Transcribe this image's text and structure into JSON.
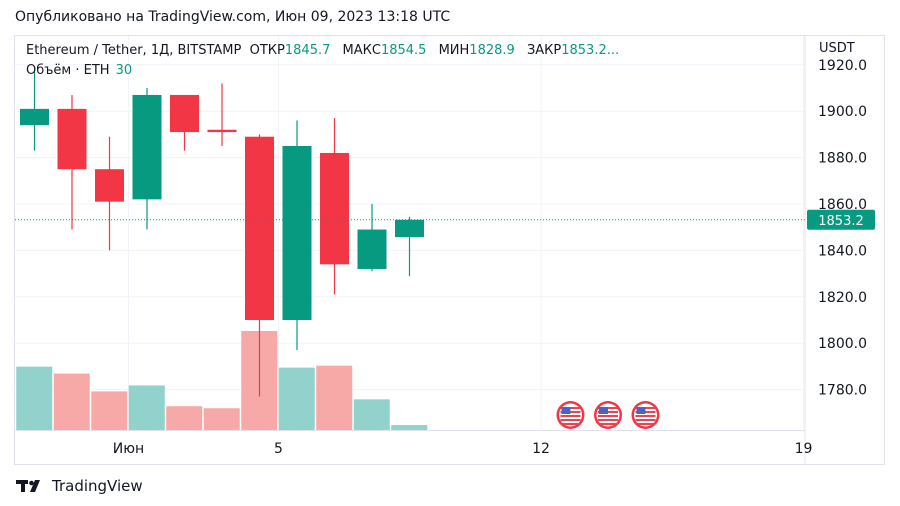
{
  "header": {
    "published": "Опубликовано на TradingView.com, Июн 09, 2023 13:18 UTC"
  },
  "legend": {
    "symbol": "Ethereum / Tether, 1Д, BITSTAMP",
    "open_label": "ОТКР",
    "open_value": "1845.7",
    "high_label": "МАКС",
    "high_value": "1854.5",
    "low_label": "МИН",
    "low_value": "1828.9",
    "close_label": "ЗАКР",
    "close_value": "1853.2...",
    "volume_label": "Объём · ETH",
    "volume_value": "30"
  },
  "axis": {
    "currency": "USDT",
    "last_price_label": "1853.2"
  },
  "footer": {
    "brand": "TradingView"
  },
  "colors": {
    "up": "#089981",
    "down": "#f23645",
    "up_vol": "#92d2cc",
    "down_vol": "#f7a9a7",
    "grid": "#f0f3fa"
  },
  "chart_data": {
    "type": "candlestick",
    "ylim": [
      1763,
      1928
    ],
    "y_ticks": [
      "1780.0",
      "1800.0",
      "1820.0",
      "1840.0",
      "1860.0",
      "1880.0",
      "1900.0",
      "1920.0"
    ],
    "x_ticks": [
      {
        "label": "Июн",
        "index": 2.5
      },
      {
        "label": "5",
        "index": 6.5
      },
      {
        "label": "12",
        "index": 13.5
      },
      {
        "label": "19",
        "index": 20.5
      }
    ],
    "last_price": 1853.2,
    "candles": [
      {
        "open": 1894,
        "high": 1917,
        "low": 1883,
        "close": 1901,
        "volume": 0.64
      },
      {
        "open": 1901,
        "high": 1907,
        "low": 1849,
        "close": 1875,
        "volume": 0.57
      },
      {
        "open": 1875,
        "high": 1889,
        "low": 1840,
        "close": 1861,
        "volume": 0.39
      },
      {
        "open": 1862,
        "high": 1910,
        "low": 1849,
        "close": 1907,
        "volume": 0.45
      },
      {
        "open": 1907,
        "high": 1907,
        "low": 1883,
        "close": 1891,
        "volume": 0.24
      },
      {
        "open": 1892,
        "high": 1912,
        "low": 1885,
        "close": 1891,
        "volume": 0.22
      },
      {
        "open": 1889,
        "high": 1890,
        "low": 1777,
        "close": 1810,
        "volume": 1.0
      },
      {
        "open": 1810,
        "high": 1896,
        "low": 1797,
        "close": 1885,
        "volume": 0.63
      },
      {
        "open": 1882,
        "high": 1897,
        "low": 1821,
        "close": 1834,
        "volume": 0.65
      },
      {
        "open": 1832,
        "high": 1860,
        "low": 1831,
        "close": 1849,
        "volume": 0.31
      },
      {
        "open": 1845.7,
        "high": 1854.5,
        "low": 1828.9,
        "close": 1853.2,
        "volume": 0.05
      }
    ],
    "event_markers": [
      {
        "label": "US",
        "index": 14.0
      },
      {
        "label": "US",
        "index": 15.0
      },
      {
        "label": "US",
        "index": 16.0
      }
    ]
  }
}
